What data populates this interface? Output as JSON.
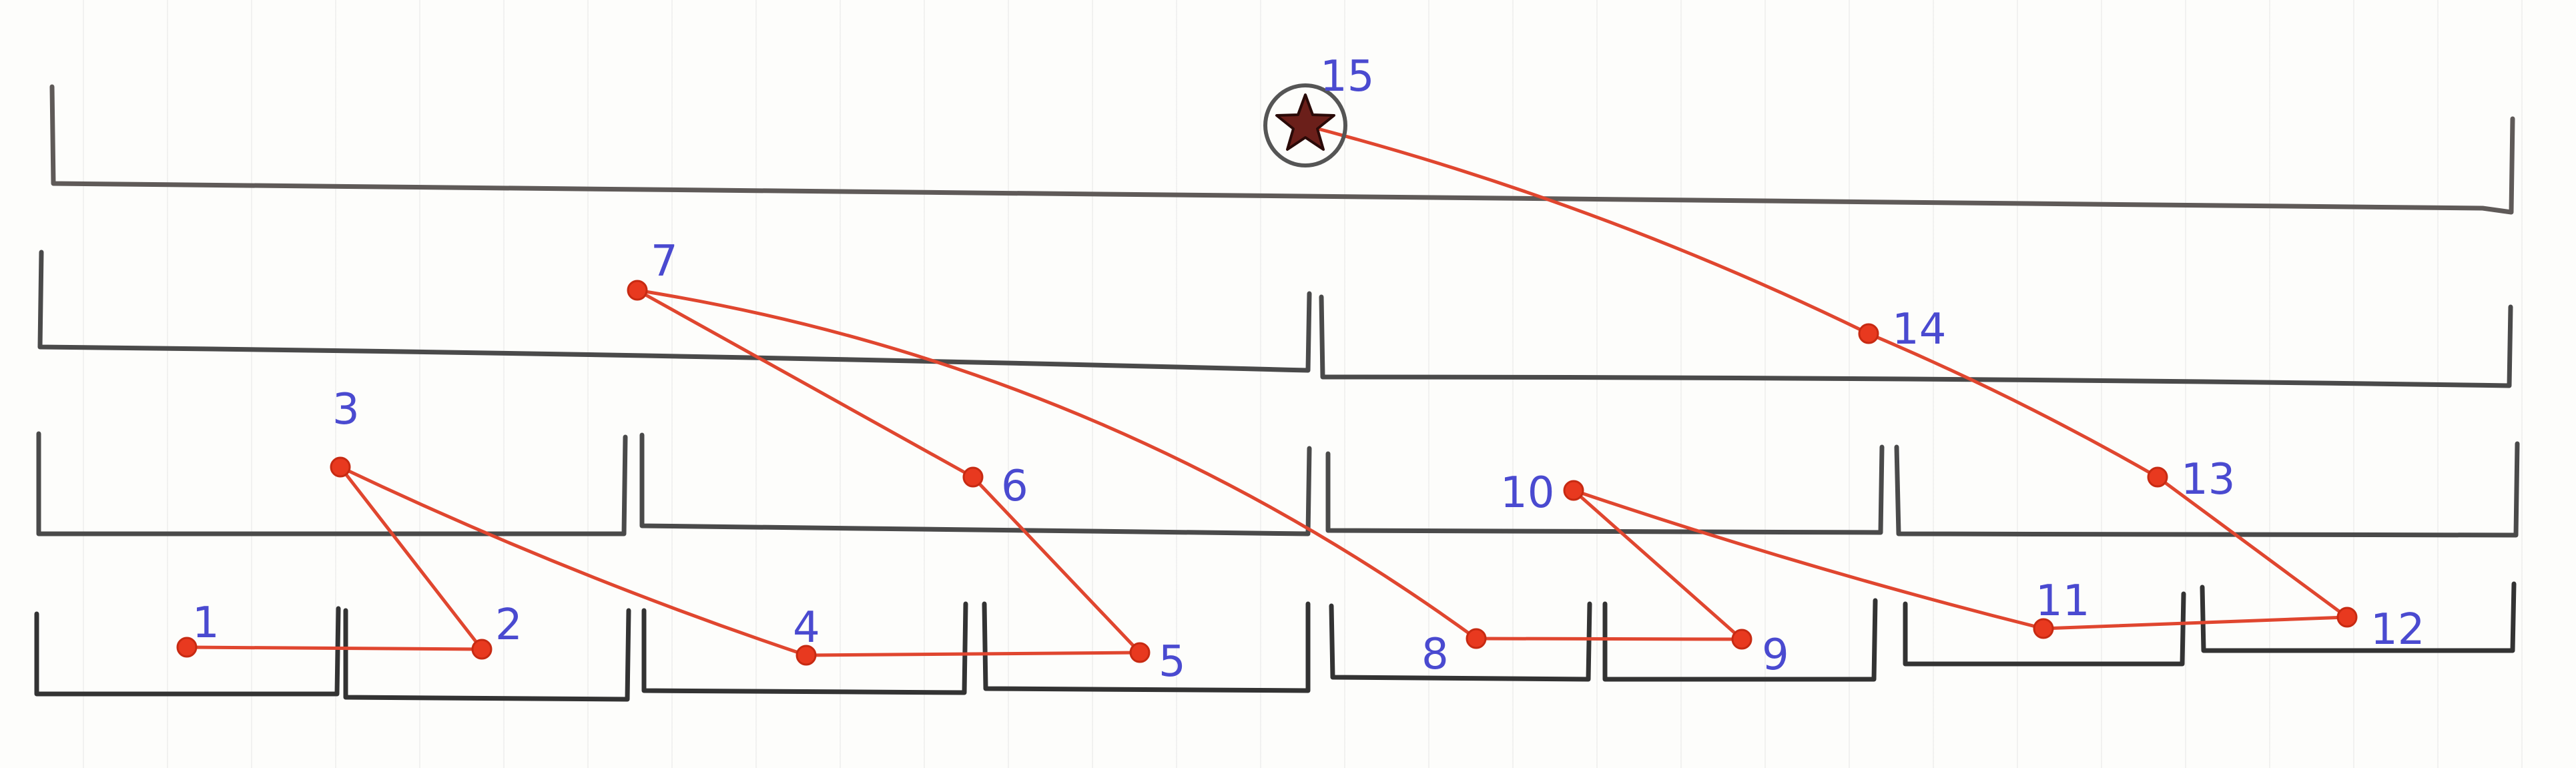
{
  "diagram": {
    "kind": "tournament-bracket-path",
    "nodes": [
      {
        "id": "1",
        "label": "1"
      },
      {
        "id": "2",
        "label": "2"
      },
      {
        "id": "3",
        "label": "3"
      },
      {
        "id": "4",
        "label": "4"
      },
      {
        "id": "5",
        "label": "5"
      },
      {
        "id": "6",
        "label": "6"
      },
      {
        "id": "7",
        "label": "7"
      },
      {
        "id": "8",
        "label": "8"
      },
      {
        "id": "9",
        "label": "9"
      },
      {
        "id": "10",
        "label": "10"
      },
      {
        "id": "11",
        "label": "11"
      },
      {
        "id": "12",
        "label": "12"
      },
      {
        "id": "13",
        "label": "13"
      },
      {
        "id": "14",
        "label": "14"
      },
      {
        "id": "15",
        "label": "15",
        "marker": "star-icon"
      }
    ],
    "edges": [
      [
        "1",
        "2"
      ],
      [
        "2",
        "3"
      ],
      [
        "3",
        "4"
      ],
      [
        "4",
        "5"
      ],
      [
        "5",
        "6"
      ],
      [
        "6",
        "7"
      ],
      [
        "7",
        "8"
      ],
      [
        "8",
        "9"
      ],
      [
        "9",
        "10"
      ],
      [
        "10",
        "11"
      ],
      [
        "11",
        "12"
      ],
      [
        "12",
        "13"
      ],
      [
        "13",
        "14"
      ],
      [
        "14",
        "15"
      ]
    ],
    "colors": {
      "path": "#e0462f",
      "dot": "#e8391f",
      "label": "#4a4ad0",
      "bracket": "#4a4a4a",
      "star": "#6b1f1a"
    }
  }
}
